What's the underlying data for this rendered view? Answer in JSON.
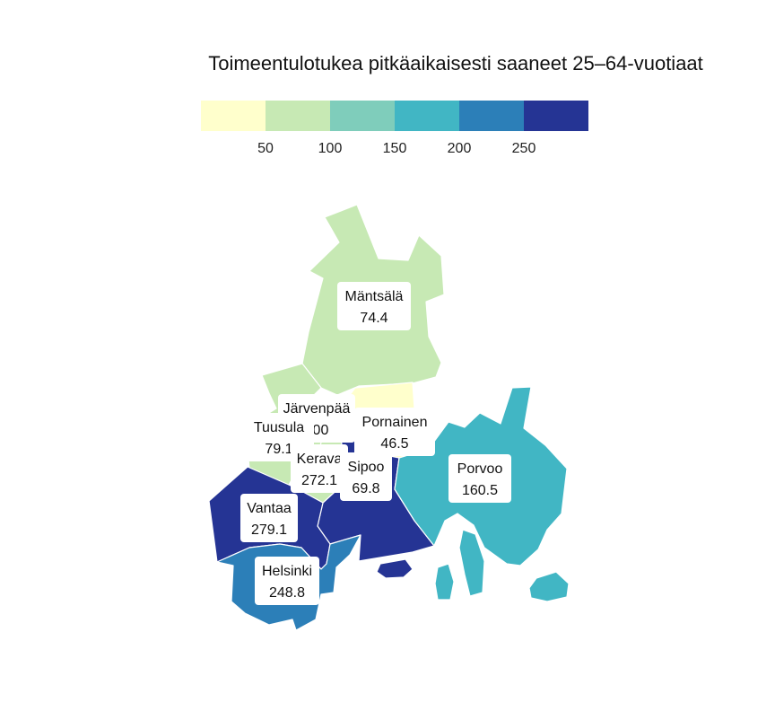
{
  "title": "Toimeentulotukea pitkäaikaisesti saaneet 25–64-vuotiaat",
  "legend": {
    "breaks": [
      50,
      100,
      150,
      200,
      250
    ],
    "tick_labels": [
      "50",
      "100",
      "150",
      "200",
      "250"
    ],
    "colors": [
      "#ffffcc",
      "#c7e9b4",
      "#7fcdbb",
      "#41b6c4",
      "#2c7fb8",
      "#253494"
    ]
  },
  "regions": [
    {
      "name": "Mäntsälä",
      "value": "74.4",
      "color": "#c7e9b4"
    },
    {
      "name": "Pornainen",
      "value": "46.5",
      "color": "#ffffcc"
    },
    {
      "name": "Järvenpää",
      "value": "200",
      "color": "#41b6c4"
    },
    {
      "name": "Tuusula",
      "value": "79.1",
      "color": "#c7e9b4"
    },
    {
      "name": "Kerava",
      "value": "272.1",
      "color": "#253494"
    },
    {
      "name": "Sipoo",
      "value": "69.8",
      "color": "#c7e9b4"
    },
    {
      "name": "Porvoo",
      "value": "160.5",
      "color": "#41b6c4"
    },
    {
      "name": "Vantaa",
      "value": "279.1",
      "color": "#253494"
    },
    {
      "name": "Helsinki",
      "value": "248.8",
      "color": "#2c7fb8"
    }
  ]
}
